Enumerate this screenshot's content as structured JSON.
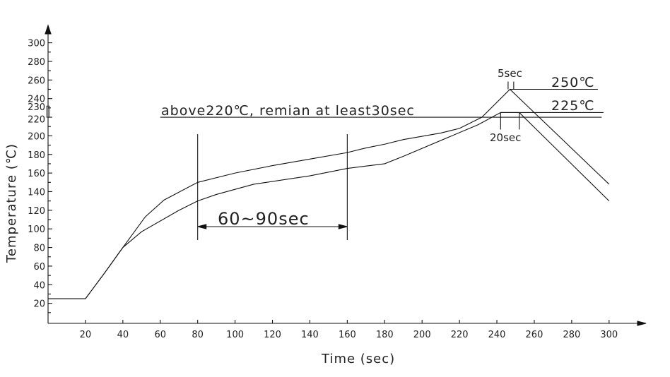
{
  "chart_data": {
    "type": "line",
    "title": "",
    "xlabel": "Time (sec)",
    "ylabel": "Temperature (℃)",
    "xlim": [
      0,
      310
    ],
    "ylim": [
      0,
      310
    ],
    "x_ticks": [
      "20",
      "40",
      "60",
      "80",
      "100",
      "120",
      "140",
      "160",
      "180",
      "200",
      "220",
      "240",
      "260",
      "280",
      "300"
    ],
    "y_ticks": [
      "20",
      "40",
      "60",
      "80",
      "100",
      "120",
      "140",
      "160",
      "180",
      "200",
      "220",
      "230",
      "240",
      "260",
      "280",
      "300"
    ],
    "grid": false,
    "series": [
      {
        "points": [
          [
            0,
            25
          ],
          [
            20,
            25
          ],
          [
            30,
            52
          ],
          [
            40,
            80
          ],
          [
            52,
            113
          ],
          [
            62,
            131
          ],
          [
            80,
            150
          ],
          [
            100,
            160
          ],
          [
            120,
            168
          ],
          [
            140,
            175
          ],
          [
            160,
            182
          ],
          [
            170,
            187
          ],
          [
            180,
            191
          ],
          [
            190,
            196
          ],
          [
            210,
            203
          ],
          [
            220,
            208
          ],
          [
            232,
            220
          ],
          [
            247,
            250
          ],
          [
            300,
            148
          ]
        ]
      },
      {
        "points": [
          [
            0,
            25
          ],
          [
            20,
            25
          ],
          [
            30,
            52
          ],
          [
            40,
            80
          ],
          [
            50,
            97
          ],
          [
            70,
            120
          ],
          [
            80,
            130
          ],
          [
            90,
            137
          ],
          [
            110,
            148
          ],
          [
            140,
            157
          ],
          [
            160,
            165
          ],
          [
            180,
            170
          ],
          [
            190,
            178
          ],
          [
            230,
            212
          ],
          [
            242,
            225
          ],
          [
            252,
            225
          ],
          [
            300,
            130
          ]
        ]
      }
    ],
    "annotations": {
      "above": "above220℃, remian at least30sec",
      "soak": "60~90sec",
      "peak_time": "5sec",
      "peak_temp": "250℃",
      "reflow_temp": "225℃",
      "reflow_time": "20sec"
    },
    "colors": {
      "line": "#111111",
      "background": "#ffffff"
    }
  }
}
